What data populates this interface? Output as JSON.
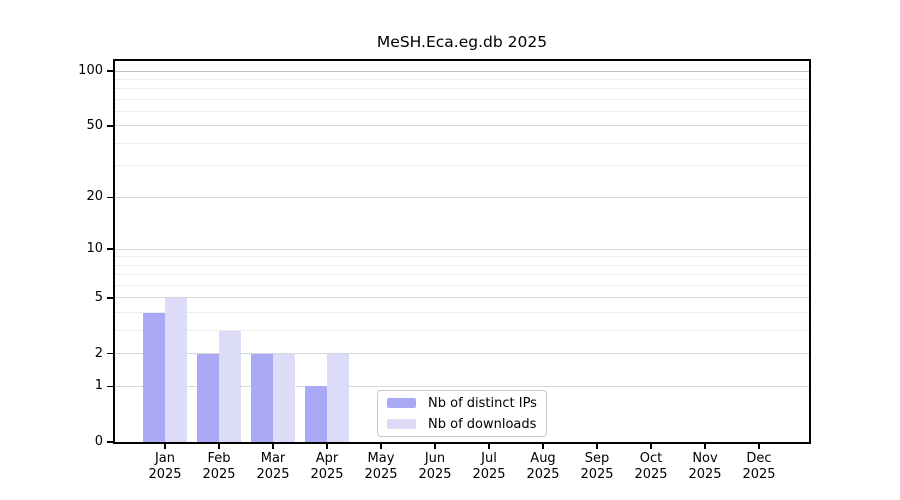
{
  "figure": {
    "background": "#ffffff"
  },
  "chart_data": {
    "type": "bar",
    "title": "MeSH.Eca.eg.db 2025",
    "categories": [
      "Jan",
      "Feb",
      "Mar",
      "Apr",
      "May",
      "Jun",
      "Jul",
      "Aug",
      "Sep",
      "Oct",
      "Nov",
      "Dec"
    ],
    "x_year_label": "2025",
    "series": [
      {
        "name": "Nb of distinct IPs",
        "color": "#a9a9f6",
        "values": [
          4,
          2,
          2,
          1,
          0,
          0,
          0,
          0,
          0,
          0,
          0,
          0
        ]
      },
      {
        "name": "Nb of downloads",
        "color": "#dcdcf8",
        "values": [
          5,
          3,
          2,
          2,
          0,
          0,
          0,
          0,
          0,
          0,
          0,
          0
        ]
      }
    ],
    "y_axis": {
      "scale": "log10(1+x)",
      "tick_values": [
        0,
        1,
        2,
        5,
        10,
        20,
        50,
        100
      ],
      "major_gridlines": [
        1,
        2,
        5,
        10,
        20,
        50
      ],
      "minor_gridlines": [
        3,
        4,
        6,
        7,
        8,
        9,
        30,
        40,
        60,
        70,
        80,
        90
      ],
      "top_gridline": 100,
      "range": [
        0,
        100
      ]
    },
    "xlabel": "",
    "ylabel": "",
    "grid": true,
    "legend_position": "bottom-center",
    "colors": {
      "grid_minor": "#ededed",
      "grid_major": "#d9d9d9",
      "grid_top": "#c4c4c4",
      "spine": "#000000",
      "text": "#000000"
    }
  }
}
